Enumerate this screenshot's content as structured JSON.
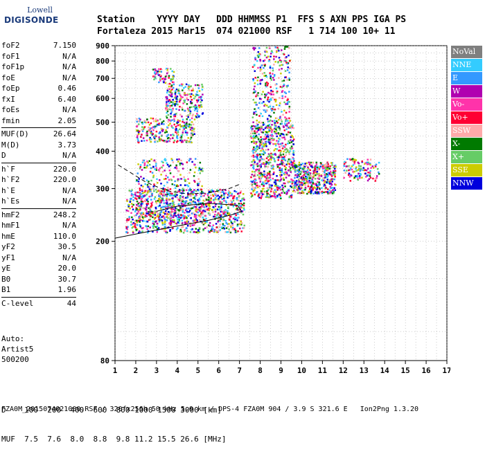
{
  "logo": {
    "line1": "Lowell",
    "line2": "DIGISONDE"
  },
  "header": {
    "line1": "Station    YYYY DAY   DDD HHMMSS P1  FFS S AXN PPS IGA PS",
    "line2": "Fortaleza 2015 Mar15  074 021000 RSF   1 714 100 10+ 11"
  },
  "params": [
    [
      {
        "k": "foF2",
        "v": "7.150"
      },
      {
        "k": "foF1",
        "v": "N/A"
      },
      {
        "k": "foF1p",
        "v": "N/A"
      },
      {
        "k": "foE",
        "v": "N/A"
      },
      {
        "k": "foEp",
        "v": "0.46"
      },
      {
        "k": "fxI",
        "v": "6.40"
      },
      {
        "k": "foEs",
        "v": "N/A"
      },
      {
        "k": "fmin",
        "v": "2.05"
      }
    ],
    [
      {
        "k": "MUF(D)",
        "v": "26.64"
      },
      {
        "k": "M(D)",
        "v": "3.73"
      },
      {
        "k": "D",
        "v": "N/A"
      }
    ],
    [
      {
        "k": "h`F",
        "v": "220.0"
      },
      {
        "k": "h`F2",
        "v": "220.0"
      },
      {
        "k": "h`E",
        "v": "N/A"
      },
      {
        "k": "h`Es",
        "v": "N/A"
      }
    ],
    [
      {
        "k": "hmF2",
        "v": "248.2"
      },
      {
        "k": "hmF1",
        "v": "N/A"
      },
      {
        "k": "hmE",
        "v": "110.0"
      },
      {
        "k": "yF2",
        "v": "30.5"
      },
      {
        "k": "yF1",
        "v": "N/A"
      },
      {
        "k": "yE",
        "v": "20.0"
      },
      {
        "k": "B0",
        "v": "30.7"
      },
      {
        "k": "B1",
        "v": "1.96"
      }
    ],
    [
      {
        "k": "C-level",
        "v": "44"
      }
    ]
  ],
  "auto": {
    "line1": "Auto:",
    "line2": "Artist5",
    "line3": "500200"
  },
  "legend": [
    {
      "label": "NoVal",
      "color": "#7f7f7f"
    },
    {
      "label": "NNE",
      "color": "#33ccff"
    },
    {
      "label": "E",
      "color": "#3399ff"
    },
    {
      "label": "W",
      "color": "#b000b0"
    },
    {
      "label": "Vo-",
      "color": "#ff33aa"
    },
    {
      "label": "Vo+",
      "color": "#ff0033"
    },
    {
      "label": "SSW",
      "color": "#ffaaaa"
    },
    {
      "label": "X-",
      "color": "#007a00"
    },
    {
      "label": "X+",
      "color": "#66cc66"
    },
    {
      "label": "SSE",
      "color": "#cccc00"
    },
    {
      "label": "NNW",
      "color": "#0000dd"
    }
  ],
  "bottom": {
    "d_row": "D    100  200  400  600  800 1000 1500 3000 [km]",
    "muf_row": "MUF  7.5  7.6  8.0  8.8  9.8 11.2 15.5 26.6 [MHz]"
  },
  "footer": "FZA0M_2015074021000.RSF / 320fx256h 50 kHz 5.0 km / DPS-4 FZA0M 904 / 3.9 S 321.6 E   Ion2Png 1.3.20",
  "chart_data": {
    "type": "scatter",
    "x_ticks": [
      "1",
      "2",
      "3",
      "4",
      "5",
      "6",
      "7",
      "8",
      "9",
      "10",
      "11",
      "12",
      "13",
      "14",
      "15",
      "16",
      "17"
    ],
    "y_ticks": [
      "80",
      "200",
      "300",
      "400",
      "500",
      "600",
      "700",
      "800",
      "900"
    ],
    "xlim": [
      1,
      17
    ],
    "y_scale": "log",
    "ylim": [
      80,
      900
    ],
    "grid": true,
    "clusters": [
      {
        "xr": [
          1.5,
          7.2
        ],
        "yr": [
          215,
          300
        ],
        "n": 900
      },
      {
        "xr": [
          2.0,
          5.2
        ],
        "yr": [
          230,
          380
        ],
        "n": 400
      },
      {
        "xr": [
          2.0,
          4.8
        ],
        "yr": [
          430,
          520
        ],
        "n": 260
      },
      {
        "xr": [
          3.4,
          5.2
        ],
        "yr": [
          520,
          680
        ],
        "n": 220
      },
      {
        "xr": [
          2.8,
          3.8
        ],
        "yr": [
          680,
          760
        ],
        "n": 60
      },
      {
        "xr": [
          7.5,
          9.6
        ],
        "yr": [
          280,
          500
        ],
        "n": 700
      },
      {
        "xr": [
          7.6,
          9.4
        ],
        "yr": [
          500,
          900
        ],
        "n": 300
      },
      {
        "xr": [
          9.6,
          11.6
        ],
        "yr": [
          290,
          370
        ],
        "n": 420
      },
      {
        "xr": [
          12.0,
          13.7
        ],
        "yr": [
          320,
          380
        ],
        "n": 120
      }
    ],
    "trace_dashed": [
      [
        1.15,
        360
      ],
      [
        2.5,
        315
      ],
      [
        3.5,
        295
      ],
      [
        4.5,
        288
      ],
      [
        5.5,
        290
      ],
      [
        6.5,
        300
      ],
      [
        7.1,
        312
      ]
    ],
    "trace_solid": [
      [
        1.0,
        205
      ],
      [
        2.5,
        215
      ],
      [
        4.0,
        225
      ],
      [
        5.5,
        235
      ],
      [
        6.6,
        245
      ],
      [
        7.1,
        252
      ],
      [
        6.9,
        264
      ],
      [
        5.5,
        268
      ],
      [
        4.0,
        262
      ],
      [
        3.0,
        252
      ]
    ]
  }
}
